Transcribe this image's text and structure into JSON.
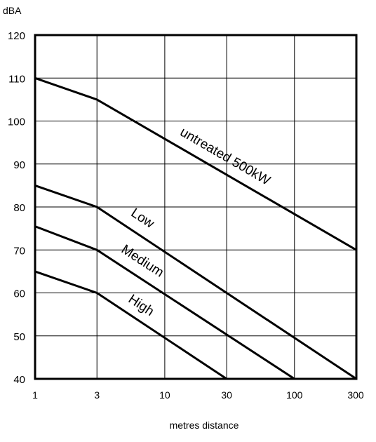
{
  "chart_data": {
    "type": "line",
    "title": "",
    "ylabel": "dBA",
    "xlabel": "metres distance",
    "x_scale": "log",
    "xlim": [
      1,
      300
    ],
    "ylim": [
      40,
      120
    ],
    "x_ticks": [
      1,
      3,
      10,
      30,
      100,
      300
    ],
    "y_ticks": [
      40,
      50,
      60,
      70,
      80,
      90,
      100,
      110,
      120
    ],
    "grid": true,
    "line_color": "#000000",
    "series": [
      {
        "name": "untreated 500kW",
        "x": [
          1,
          3,
          300
        ],
        "values": [
          110,
          105,
          70
        ]
      },
      {
        "name": "Low",
        "x": [
          1,
          3,
          300
        ],
        "values": [
          85,
          80,
          40
        ]
      },
      {
        "name": "Medium",
        "x": [
          1,
          3,
          100
        ],
        "values": [
          75.5,
          70,
          40
        ]
      },
      {
        "name": "High",
        "x": [
          1,
          3,
          30
        ],
        "values": [
          65,
          60,
          40
        ]
      }
    ]
  }
}
